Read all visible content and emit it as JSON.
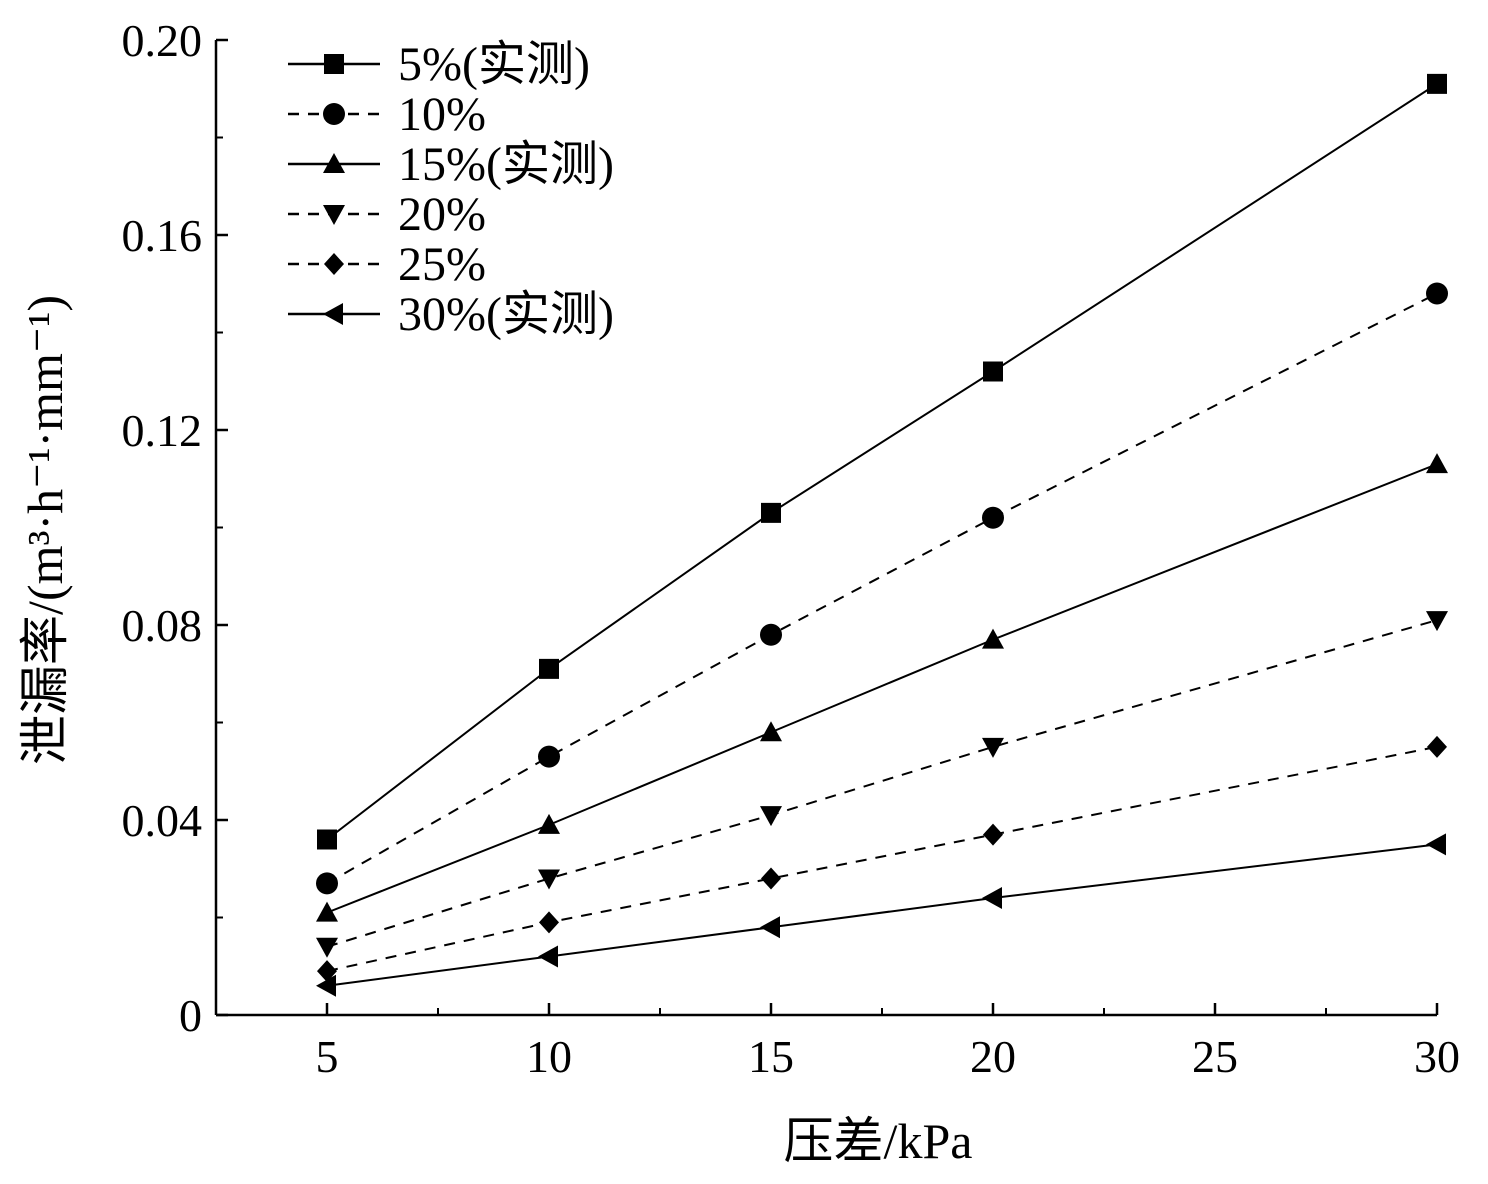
{
  "chart_data": {
    "type": "line",
    "xlabel": "压差/kPa",
    "ylabel": "泄漏率/(m³·h⁻¹·mm⁻¹)",
    "x": [
      5,
      10,
      15,
      20,
      25,
      30
    ],
    "x_ticks": [
      "5",
      "10",
      "15",
      "20",
      "25",
      "30"
    ],
    "y_ticks": [
      "0",
      "0.04",
      "0.08",
      "0.12",
      "0.16",
      "0.20"
    ],
    "xlim": [
      2.5,
      30
    ],
    "ylim": [
      0,
      0.2
    ],
    "grid": false,
    "legend_position": "top-left",
    "series": [
      {
        "name": "5%(实测)",
        "marker": "square",
        "dashed": false,
        "x": [
          5,
          10,
          15,
          20,
          30
        ],
        "values": [
          0.036,
          0.071,
          0.103,
          0.132,
          0.191
        ]
      },
      {
        "name": "10%",
        "marker": "circle",
        "dashed": true,
        "x": [
          5,
          10,
          15,
          20,
          30
        ],
        "values": [
          0.027,
          0.053,
          0.078,
          0.102,
          0.148
        ]
      },
      {
        "name": "15%(实测)",
        "marker": "triangle-up",
        "dashed": false,
        "x": [
          5,
          10,
          15,
          20,
          30
        ],
        "values": [
          0.021,
          0.039,
          0.058,
          0.077,
          0.113
        ]
      },
      {
        "name": "20%",
        "marker": "triangle-down",
        "dashed": true,
        "x": [
          5,
          10,
          15,
          20,
          30
        ],
        "values": [
          0.014,
          0.028,
          0.041,
          0.055,
          0.081
        ]
      },
      {
        "name": "25%",
        "marker": "diamond",
        "dashed": true,
        "x": [
          5,
          10,
          15,
          20,
          30
        ],
        "values": [
          0.009,
          0.019,
          0.028,
          0.037,
          0.055
        ]
      },
      {
        "name": "30%(实测)",
        "marker": "triangle-left",
        "dashed": false,
        "x": [
          5,
          10,
          15,
          20,
          30
        ],
        "values": [
          0.006,
          0.012,
          0.018,
          0.024,
          0.035
        ]
      }
    ]
  }
}
